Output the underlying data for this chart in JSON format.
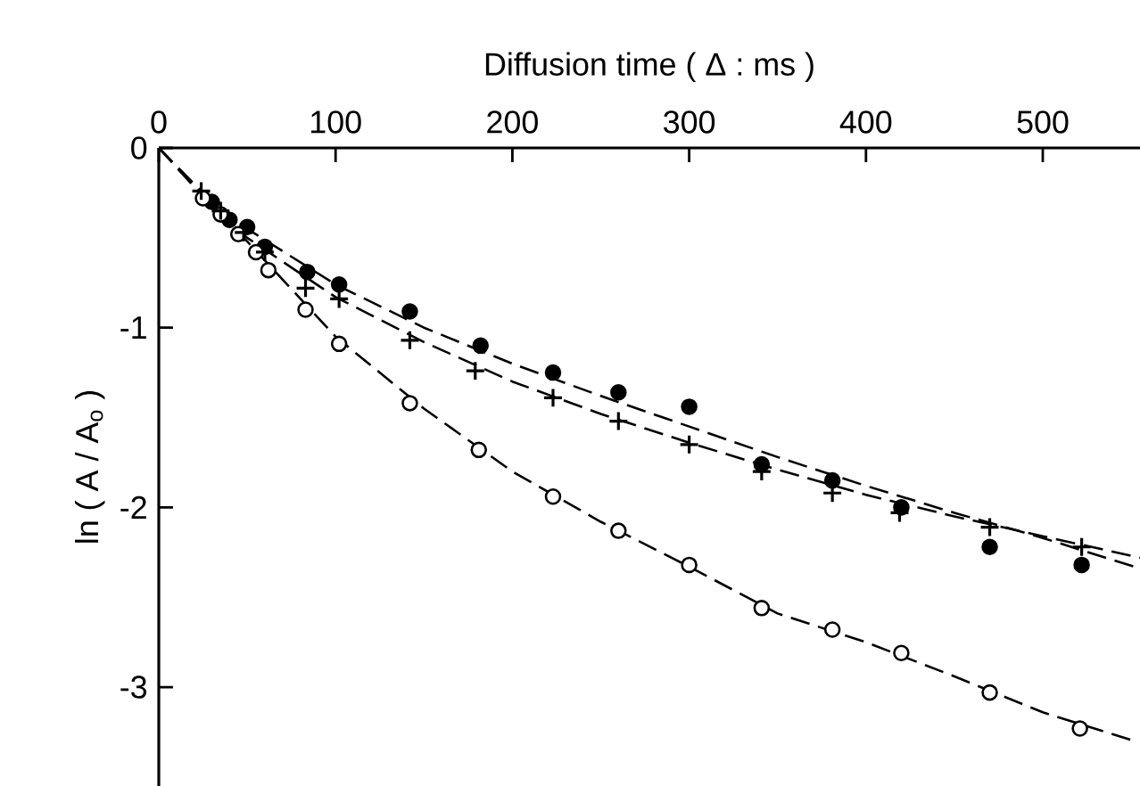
{
  "chart_data": {
    "type": "scatter",
    "xlabel": "Diffusion time  ( Δ : ms )",
    "ylabel": "ln ( A / A$_{o}$ )",
    "xlim": [
      0,
      555
    ],
    "ylim": [
      -3.55,
      0
    ],
    "xticks": [
      0,
      100,
      200,
      300,
      400,
      500
    ],
    "yticks": [
      0,
      -1,
      -2,
      -3
    ],
    "grid": false,
    "series": [
      {
        "marker": "circle",
        "color": "#000000",
        "x": [
          30,
          40,
          50,
          60,
          84,
          102,
          142,
          182,
          223,
          260,
          300,
          341,
          381,
          420,
          470,
          522
        ],
        "values": [
          -0.3,
          -0.4,
          -0.44,
          -0.55,
          -0.69,
          -0.76,
          -0.91,
          -1.1,
          -1.25,
          -1.36,
          -1.44,
          -1.76,
          -1.85,
          -2.0,
          -2.22,
          -2.32
        ]
      },
      {
        "marker": "cross",
        "color": "#000000",
        "x": [
          24,
          35,
          48,
          60,
          83,
          102,
          142,
          179,
          223,
          260,
          300,
          341,
          381,
          419,
          470,
          522
        ],
        "values": [
          -0.24,
          -0.35,
          -0.47,
          -0.58,
          -0.78,
          -0.84,
          -1.07,
          -1.24,
          -1.39,
          -1.52,
          -1.65,
          -1.8,
          -1.92,
          -2.03,
          -2.11,
          -2.22
        ]
      },
      {
        "marker": "circle",
        "color": "#ffffff",
        "x": [
          25,
          35,
          45,
          55,
          62,
          83,
          102,
          142,
          181,
          223,
          260,
          300,
          341,
          381,
          420,
          470,
          521
        ],
        "values": [
          -0.28,
          -0.37,
          -0.48,
          -0.58,
          -0.68,
          -0.9,
          -1.09,
          -1.42,
          -1.68,
          -1.94,
          -2.13,
          -2.32,
          -2.56,
          -2.68,
          -2.81,
          -3.03,
          -3.23
        ]
      },
      {
        "type": "line",
        "line_style": "dashed",
        "color": "#000000",
        "x": [
          0,
          25,
          50,
          100,
          150,
          200,
          250,
          300,
          350,
          400,
          450,
          500,
          555
        ],
        "values": [
          0,
          -0.25,
          -0.45,
          -0.76,
          -1.0,
          -1.2,
          -1.38,
          -1.55,
          -1.72,
          -1.88,
          -2.03,
          -2.17,
          -2.34
        ]
      },
      {
        "type": "line",
        "line_style": "dashed",
        "color": "#000000",
        "x": [
          0,
          25,
          50,
          100,
          150,
          200,
          250,
          300,
          350,
          400,
          450,
          500,
          555
        ],
        "values": [
          0,
          -0.27,
          -0.5,
          -0.83,
          -1.08,
          -1.3,
          -1.48,
          -1.64,
          -1.79,
          -1.93,
          -2.05,
          -2.16,
          -2.28
        ]
      },
      {
        "type": "line",
        "line_style": "dashed",
        "color": "#000000",
        "x": [
          0,
          25,
          50,
          100,
          150,
          200,
          250,
          300,
          350,
          400,
          450,
          500,
          552
        ],
        "values": [
          0,
          -0.26,
          -0.52,
          -1.05,
          -1.45,
          -1.8,
          -2.08,
          -2.33,
          -2.59,
          -2.75,
          -2.94,
          -3.14,
          -3.3
        ]
      }
    ]
  }
}
